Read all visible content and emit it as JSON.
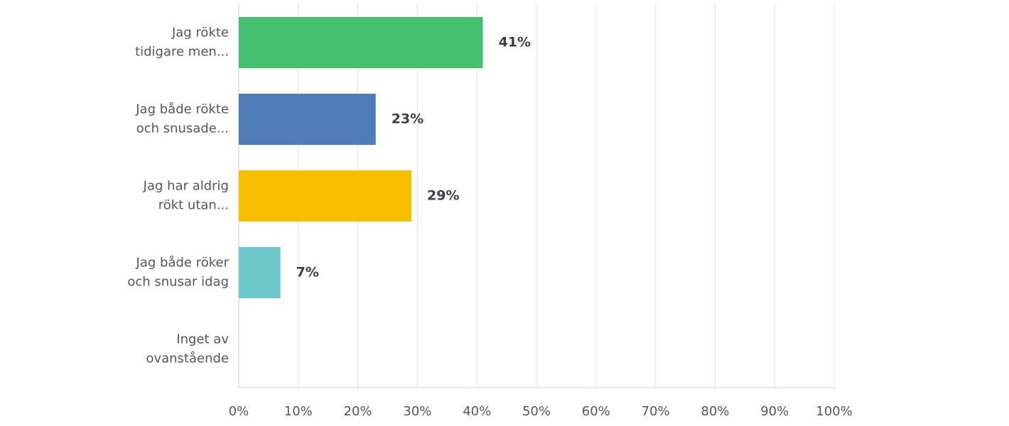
{
  "chart_data": {
    "type": "hbar",
    "categories": [
      [
        "Jag rökte",
        "tidigare men..."
      ],
      [
        "Jag både rökte",
        "och snusade..."
      ],
      [
        "Jag har aldrig",
        "rökt utan..."
      ],
      [
        "Jag både röker",
        "och snusar idag"
      ],
      [
        "Inget av",
        "ovanstående"
      ]
    ],
    "values": [
      41,
      23,
      29,
      7,
      0
    ],
    "value_labels": [
      "41%",
      "23%",
      "29%",
      "7%",
      null
    ],
    "colors": [
      "#44c06e",
      "#4f7bb8",
      "#f7bf00",
      "#6cc8cb",
      "#999999"
    ],
    "xlim": [
      0,
      100
    ],
    "xticks": [
      {
        "value": 0,
        "label": "0%"
      },
      {
        "value": 10,
        "label": "10%"
      },
      {
        "value": 20,
        "label": "20%"
      },
      {
        "value": 30,
        "label": "30%"
      },
      {
        "value": 40,
        "label": "40%"
      },
      {
        "value": 50,
        "label": "50%"
      },
      {
        "value": 60,
        "label": "60%"
      },
      {
        "value": 70,
        "label": "70%"
      },
      {
        "value": 80,
        "label": "80%"
      },
      {
        "value": 90,
        "label": "90%"
      },
      {
        "value": 100,
        "label": "100%"
      }
    ],
    "grid": true
  }
}
